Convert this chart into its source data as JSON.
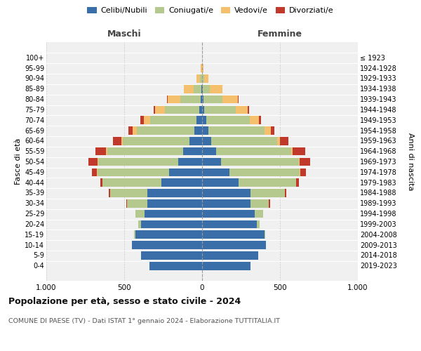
{
  "age_groups": [
    "0-4",
    "5-9",
    "10-14",
    "15-19",
    "20-24",
    "25-29",
    "30-34",
    "35-39",
    "40-44",
    "45-49",
    "50-54",
    "55-59",
    "60-64",
    "65-69",
    "70-74",
    "75-79",
    "80-84",
    "85-89",
    "90-94",
    "95-99",
    "100+"
  ],
  "birth_years": [
    "2019-2023",
    "2014-2018",
    "2009-2013",
    "2004-2008",
    "1999-2003",
    "1994-1998",
    "1989-1993",
    "1984-1988",
    "1979-1983",
    "1974-1978",
    "1969-1973",
    "1964-1968",
    "1959-1963",
    "1954-1958",
    "1949-1953",
    "1944-1948",
    "1939-1943",
    "1934-1938",
    "1929-1933",
    "1924-1928",
    "≤ 1923"
  ],
  "colors": {
    "celibi": "#3a6ea8",
    "coniugati": "#b5c98e",
    "vedovi": "#f5c06e",
    "divorziati": "#c0392b"
  },
  "maschi": {
    "celibi": [
      340,
      390,
      450,
      430,
      390,
      370,
      350,
      350,
      260,
      210,
      155,
      120,
      80,
      50,
      35,
      20,
      10,
      5,
      2,
      0,
      0
    ],
    "coniugati": [
      0,
      0,
      0,
      5,
      20,
      60,
      130,
      240,
      380,
      460,
      510,
      490,
      430,
      370,
      300,
      220,
      130,
      50,
      10,
      2,
      0
    ],
    "vedovi": [
      0,
      0,
      0,
      0,
      0,
      0,
      0,
      0,
      0,
      5,
      5,
      5,
      10,
      25,
      40,
      60,
      80,
      60,
      25,
      5,
      0
    ],
    "divorziati": [
      0,
      0,
      0,
      0,
      0,
      0,
      5,
      10,
      15,
      30,
      60,
      70,
      50,
      30,
      20,
      10,
      5,
      0,
      0,
      0,
      0
    ]
  },
  "femmine": {
    "celibi": [
      310,
      360,
      410,
      400,
      350,
      340,
      310,
      310,
      235,
      175,
      120,
      90,
      60,
      40,
      25,
      15,
      10,
      5,
      2,
      0,
      0
    ],
    "coniugati": [
      0,
      0,
      0,
      5,
      20,
      50,
      120,
      220,
      370,
      450,
      500,
      480,
      420,
      360,
      280,
      200,
      120,
      45,
      10,
      2,
      0
    ],
    "vedovi": [
      0,
      0,
      0,
      0,
      0,
      0,
      0,
      0,
      0,
      5,
      5,
      10,
      20,
      40,
      60,
      80,
      100,
      80,
      30,
      8,
      0
    ],
    "divorziati": [
      0,
      0,
      0,
      0,
      0,
      0,
      5,
      10,
      15,
      35,
      70,
      80,
      55,
      25,
      15,
      8,
      5,
      0,
      0,
      0,
      0
    ]
  },
  "xlim": 1000,
  "title": "Popolazione per età, sesso e stato civile - 2024",
  "subtitle": "COMUNE DI PAESE (TV) - Dati ISTAT 1° gennaio 2024 - Elaborazione TUTTITALIA.IT",
  "ylabel_left": "Fasce di età",
  "ylabel_right": "Anni di nascita",
  "xlabel_left": "Maschi",
  "xlabel_right": "Femmine",
  "bg_color": "#ffffff",
  "plot_bg_color": "#f0f0f0",
  "grid_color": "#cccccc"
}
